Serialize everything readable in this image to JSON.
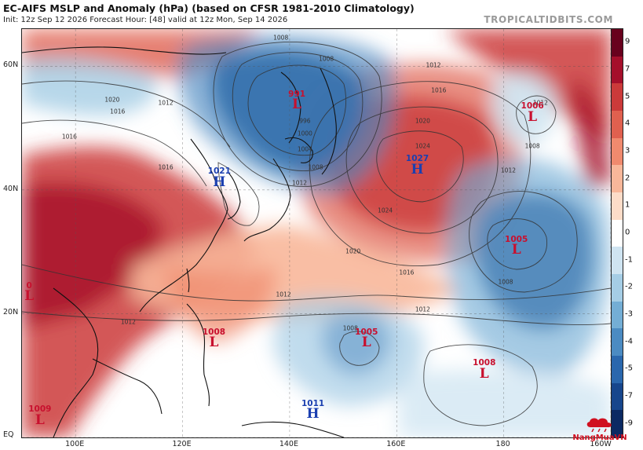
{
  "header": {
    "title": "EC-AIFS MSLP and Anomaly (hPa) (based on CFSR 1981-2010 Climatology)",
    "subtitle": "Init: 12z Sep 12 2026   Forecast Hour: [48]   valid at 12z Mon, Sep 14 2026",
    "brand": "TROPICALTIDBITS.COM"
  },
  "axes": {
    "lat_labels": [
      {
        "text": "60N",
        "lat": 60
      },
      {
        "text": "40N",
        "lat": 40
      },
      {
        "text": "20N",
        "lat": 20
      },
      {
        "text": "EQ",
        "lat": 0
      }
    ],
    "lon_labels": [
      {
        "text": "100E",
        "lon": 100
      },
      {
        "text": "120E",
        "lon": 120
      },
      {
        "text": "140E",
        "lon": 140
      },
      {
        "text": "160E",
        "lon": 160
      },
      {
        "text": "180",
        "lon": 180
      },
      {
        "text": "160W",
        "lon": 200
      }
    ]
  },
  "colorbar": {
    "ticks": [
      "9",
      "7",
      "5",
      "4",
      "3",
      "2",
      "1",
      "0",
      "-1",
      "-2",
      "-3",
      "-4",
      "-5",
      "-7",
      "-9"
    ],
    "colors": [
      "#68011d",
      "#a50f2b",
      "#cb3a3a",
      "#e0604f",
      "#f08a6e",
      "#f8b79a",
      "#fcdcc8",
      "#ffffff",
      "#cfe4f1",
      "#a5cde5",
      "#74aed5",
      "#4b8bc2",
      "#2a67ad",
      "#17468c",
      "#0b2a63"
    ]
  },
  "pressure_centers": [
    {
      "type": "L",
      "value": "991",
      "lat": 54.5,
      "lon": 141.5
    },
    {
      "type": "H",
      "value": "1021",
      "lat": 42,
      "lon": 127
    },
    {
      "type": "H",
      "value": "1027",
      "lat": 44,
      "lon": 164
    },
    {
      "type": "L",
      "value": "1006",
      "lat": 52.5,
      "lon": 185.5
    },
    {
      "type": "L",
      "value": "1005",
      "lat": 31,
      "lon": 182.5
    },
    {
      "type": "L",
      "value": "1005",
      "lat": 16,
      "lon": 154.5
    },
    {
      "type": "L",
      "value": "1008",
      "lat": 16,
      "lon": 126
    },
    {
      "type": "L",
      "value": "1008",
      "lat": 11,
      "lon": 176.5
    },
    {
      "type": "H",
      "value": "1011",
      "lat": 4.5,
      "lon": 144.5
    },
    {
      "type": "L",
      "value": "1009",
      "lat": 3.5,
      "lon": 93.5
    },
    {
      "type": "L",
      "value": "0",
      "lat": 23.5,
      "lon": 91.5
    }
  ],
  "isobar_labels": [
    {
      "text": "1008",
      "lat": 64.5,
      "lon": 138.5
    },
    {
      "text": "1008",
      "lat": 61,
      "lon": 147
    },
    {
      "text": "1012",
      "lat": 60,
      "lon": 167
    },
    {
      "text": "1012",
      "lat": 54,
      "lon": 117
    },
    {
      "text": "1020",
      "lat": 54.5,
      "lon": 107
    },
    {
      "text": "1016",
      "lat": 52.5,
      "lon": 108
    },
    {
      "text": "1016",
      "lat": 48.5,
      "lon": 99
    },
    {
      "text": "1016",
      "lat": 43.5,
      "lon": 117
    },
    {
      "text": "1016",
      "lat": 56,
      "lon": 168
    },
    {
      "text": "1020",
      "lat": 51,
      "lon": 165
    },
    {
      "text": "1024",
      "lat": 47,
      "lon": 165
    },
    {
      "text": "1024",
      "lat": 36.5,
      "lon": 158
    },
    {
      "text": "1020",
      "lat": 30,
      "lon": 152
    },
    {
      "text": "1016",
      "lat": 26.5,
      "lon": 162
    },
    {
      "text": "1012",
      "lat": 43,
      "lon": 181
    },
    {
      "text": "1008",
      "lat": 25,
      "lon": 180.5
    },
    {
      "text": "1008",
      "lat": 47,
      "lon": 185.5
    },
    {
      "text": "1012",
      "lat": 54,
      "lon": 187
    },
    {
      "text": "1012",
      "lat": 20.5,
      "lon": 165
    },
    {
      "text": "1012",
      "lat": 23,
      "lon": 139
    },
    {
      "text": "1012",
      "lat": 18.5,
      "lon": 110
    },
    {
      "text": "1008",
      "lat": 17.5,
      "lon": 151.5
    },
    {
      "text": "1004",
      "lat": 46.5,
      "lon": 143
    },
    {
      "text": "1000",
      "lat": 49,
      "lon": 143
    },
    {
      "text": "996",
      "lat": 51,
      "lon": 143
    },
    {
      "text": "1012",
      "lat": 41,
      "lon": 142
    },
    {
      "text": "1008",
      "lat": 43.5,
      "lon": 145
    }
  ],
  "watermark": {
    "text": "NangMuaVN",
    "icon": "rain-cloud-icon"
  }
}
